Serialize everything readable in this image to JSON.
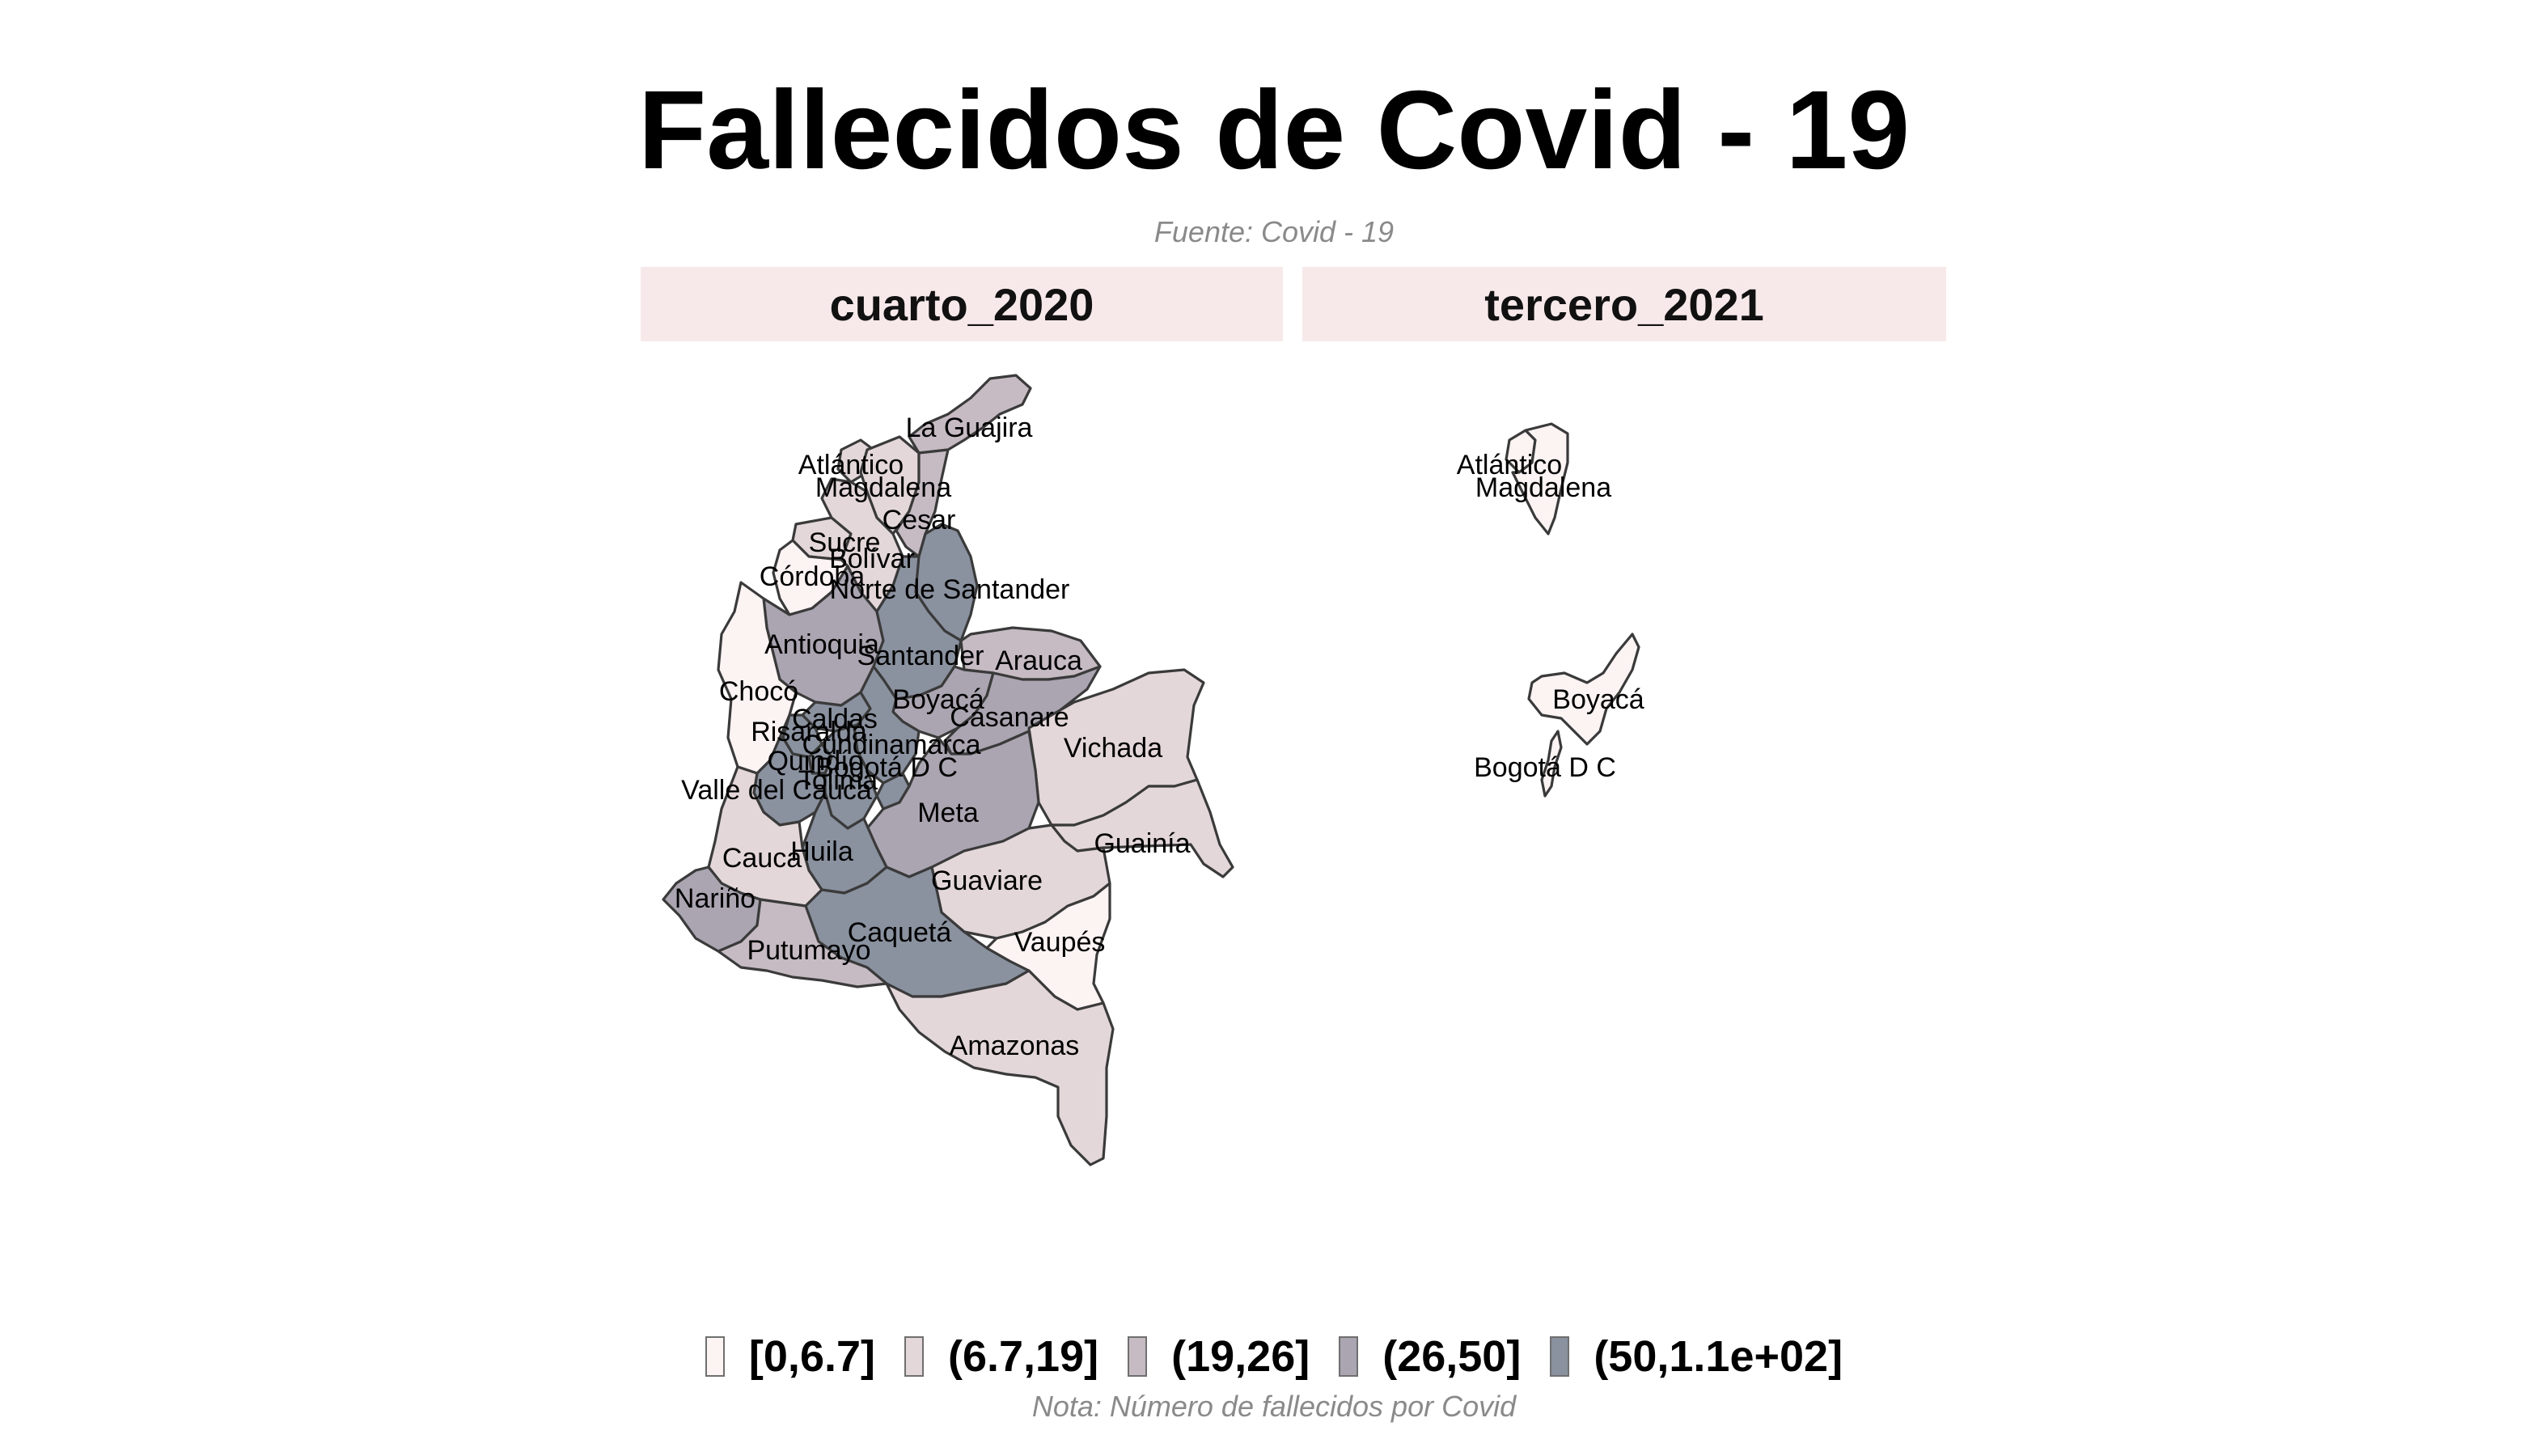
{
  "title": "Fallecidos de Covid - 19",
  "subtitle": "Fuente: Covid - 19",
  "caption": "Nota: Número de fallecidos por Covid",
  "colors": {
    "c1": "#fcf3f3",
    "c2": "#e3d7da",
    "c3": "#c6bbc2",
    "c4": "#aaa5b1",
    "c5": "#8a919f",
    "strip_bg": "#f7e9ea",
    "border": "#3a3a3a"
  },
  "legend": [
    {
      "label": "[0,6.7]",
      "color": "#fcf3f3"
    },
    {
      "label": "(6.7,19]",
      "color": "#e3d7da"
    },
    {
      "label": "(19,26]",
      "color": "#c6bbc2"
    },
    {
      "label": "(26,50]",
      "color": "#aaa5b1"
    },
    {
      "label": "(50,1.1e+02]",
      "color": "#8a919f"
    }
  ],
  "panels": [
    {
      "strip": "cuarto_2020",
      "departments": [
        {
          "name": "La Guajira",
          "class": "(19,26]"
        },
        {
          "name": "Atlántico",
          "class": "(6.7,19]"
        },
        {
          "name": "Magdalena",
          "class": "(6.7,19]"
        },
        {
          "name": "Cesar",
          "class": "(19,26]"
        },
        {
          "name": "Sucre",
          "class": "(6.7,19]"
        },
        {
          "name": "Bolívar",
          "class": "(6.7,19]"
        },
        {
          "name": "Córdoba",
          "class": "[0,6.7]"
        },
        {
          "name": "Norte de Santander",
          "class": "(50,1.1e+02]"
        },
        {
          "name": "Antioquia",
          "class": "(26,50]"
        },
        {
          "name": "Santander",
          "class": "(50,1.1e+02]"
        },
        {
          "name": "Arauca",
          "class": "(19,26]"
        },
        {
          "name": "Chocó",
          "class": "[0,6.7]"
        },
        {
          "name": "Boyacá",
          "class": "(26,50]"
        },
        {
          "name": "Casanare",
          "class": "(26,50]"
        },
        {
          "name": "Caldas",
          "class": "(50,1.1e+02]"
        },
        {
          "name": "Risaralda",
          "class": "(50,1.1e+02]"
        },
        {
          "name": "Cundinamarca",
          "class": "(50,1.1e+02]"
        },
        {
          "name": "Vichada",
          "class": "(6.7,19]"
        },
        {
          "name": "Quindío",
          "class": "(50,1.1e+02]"
        },
        {
          "name": "Bogotá D C",
          "class": "(50,1.1e+02]"
        },
        {
          "name": "Tolima",
          "class": "(50,1.1e+02]"
        },
        {
          "name": "Valle del Cauca",
          "class": "(50,1.1e+02]"
        },
        {
          "name": "Meta",
          "class": "(26,50]"
        },
        {
          "name": "Guainía",
          "class": "(6.7,19]"
        },
        {
          "name": "Huila",
          "class": "(50,1.1e+02]"
        },
        {
          "name": "Cauca",
          "class": "(6.7,19]"
        },
        {
          "name": "Guaviare",
          "class": "(6.7,19]"
        },
        {
          "name": "Nariño",
          "class": "(26,50]"
        },
        {
          "name": "Caquetá",
          "class": "(50,1.1e+02]"
        },
        {
          "name": "Vaupés",
          "class": "[0,6.7]"
        },
        {
          "name": "Putumayo",
          "class": "(19,26]"
        },
        {
          "name": "Amazonas",
          "class": "(6.7,19]"
        }
      ]
    },
    {
      "strip": "tercero_2021",
      "departments": [
        {
          "name": "Atlántico",
          "class": "[0,6.7]"
        },
        {
          "name": "Magdalena",
          "class": "[0,6.7]"
        },
        {
          "name": "Boyacá",
          "class": "[0,6.7]"
        },
        {
          "name": "Bogotá D C",
          "class": "[0,6.7]"
        }
      ]
    }
  ]
}
